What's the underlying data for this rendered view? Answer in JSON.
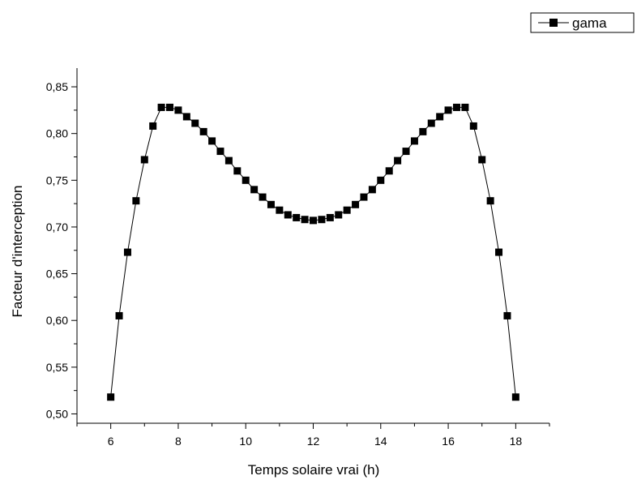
{
  "chart_data": {
    "type": "line",
    "xlabel": "Temps solaire vrai (h)",
    "ylabel": "Facteur d'interception",
    "xlim": [
      5,
      19
    ],
    "ylim": [
      0.49,
      0.87
    ],
    "x_ticks": [
      "6",
      "8",
      "10",
      "12",
      "14",
      "16",
      "18"
    ],
    "y_ticks": [
      "0,50",
      "0,55",
      "0,60",
      "0,65",
      "0,70",
      "0,75",
      "0,80",
      "0,85"
    ],
    "grid": false,
    "legend_position": "top-right",
    "marker": "square",
    "series": [
      {
        "name": "gama",
        "color": "#000000",
        "x": [
          6,
          6.25,
          6.5,
          6.75,
          7,
          7.25,
          7.5,
          7.75,
          8,
          8.25,
          8.5,
          8.75,
          9,
          9.25,
          9.5,
          9.75,
          10,
          10.25,
          10.5,
          10.75,
          11,
          11.25,
          11.5,
          11.75,
          12,
          12.25,
          12.5,
          12.75,
          13,
          13.25,
          13.5,
          13.75,
          14,
          14.25,
          14.5,
          14.75,
          15,
          15.25,
          15.5,
          15.75,
          16,
          16.25,
          16.5,
          16.75,
          17,
          17.25,
          17.5,
          17.75,
          18
        ],
        "y": [
          0.518,
          0.605,
          0.673,
          0.728,
          0.772,
          0.808,
          0.828,
          0.828,
          0.825,
          0.818,
          0.811,
          0.802,
          0.792,
          0.781,
          0.771,
          0.76,
          0.75,
          0.74,
          0.732,
          0.724,
          0.718,
          0.713,
          0.71,
          0.708,
          0.707,
          0.708,
          0.71,
          0.713,
          0.718,
          0.724,
          0.732,
          0.74,
          0.75,
          0.76,
          0.771,
          0.781,
          0.792,
          0.802,
          0.811,
          0.818,
          0.825,
          0.828,
          0.828,
          0.808,
          0.772,
          0.728,
          0.673,
          0.605,
          0.518
        ]
      }
    ]
  }
}
